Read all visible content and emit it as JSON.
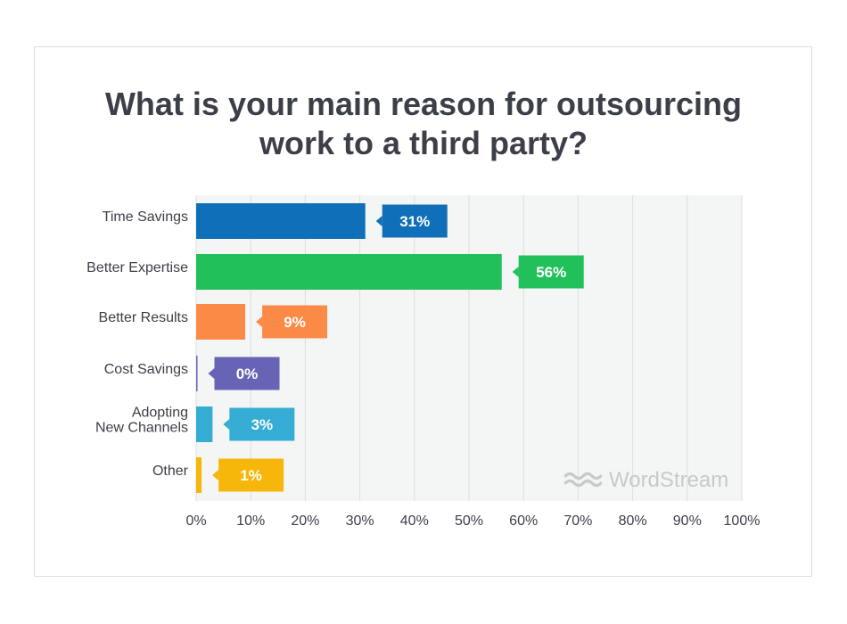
{
  "chart_data": {
    "type": "bar",
    "orientation": "horizontal",
    "title_lines": [
      "What is your main reason for outsourcing",
      "work to a third party?"
    ],
    "categories": [
      [
        "Time Savings"
      ],
      [
        "Better Expertise"
      ],
      [
        "Better Results"
      ],
      [
        "Cost Savings"
      ],
      [
        "Adopting",
        "New Channels"
      ],
      [
        "Other"
      ]
    ],
    "values": [
      31,
      56,
      9,
      0,
      3,
      1
    ],
    "value_labels": [
      "31%",
      "56%",
      "9%",
      "0%",
      "3%",
      "1%"
    ],
    "colors": [
      "#0f6fb8",
      "#22c05a",
      "#fb8a47",
      "#6764b5",
      "#34acd3",
      "#f7b70a"
    ],
    "xlim": [
      0,
      100
    ],
    "xticks": [
      0,
      10,
      20,
      30,
      40,
      50,
      60,
      70,
      80,
      90,
      100
    ],
    "xtick_labels": [
      "0%",
      "10%",
      "20%",
      "30%",
      "40%",
      "50%",
      "60%",
      "70%",
      "80%",
      "90%",
      "100%"
    ],
    "grid": true,
    "watermark": "WordStream"
  }
}
